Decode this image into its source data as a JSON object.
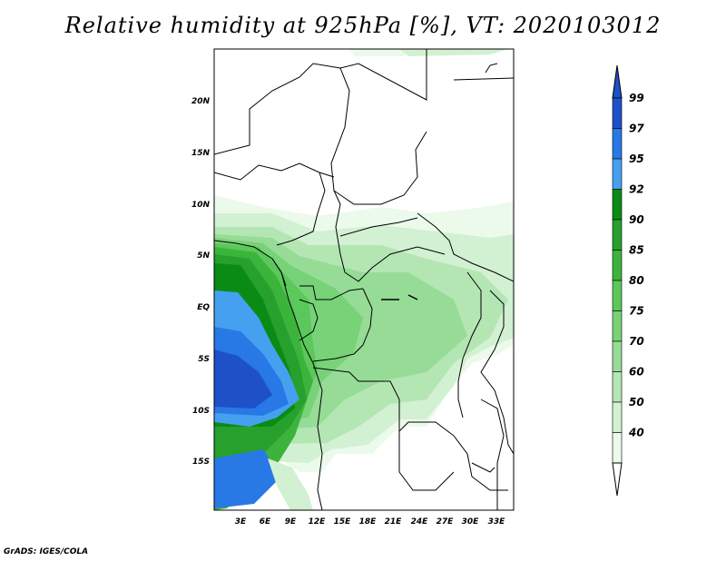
{
  "map": {
    "title": "Relative humidity at 925hPa [%], VT: 2020103012",
    "footer": "GrADS: IGES/COLA",
    "lat_labels": [
      "20N",
      "15N",
      "10N",
      "5N",
      "EQ",
      "5S",
      "10S",
      "15S"
    ],
    "lon_labels": [
      "3E",
      "6E",
      "9E",
      "12E",
      "15E",
      "18E",
      "21E",
      "24E",
      "27E",
      "30E",
      "33E"
    ],
    "colorbar": {
      "labels": [
        "99",
        "97",
        "95",
        "92",
        "90",
        "85",
        "80",
        "75",
        "70",
        "60",
        "50",
        "40"
      ],
      "colors": [
        "#1e50c8",
        "#2878e6",
        "#46a0f0",
        "#0a8c14",
        "#28a02d",
        "#3cb43c",
        "#5ac85a",
        "#78d278",
        "#96dc96",
        "#b4e6b4",
        "#d2f0d2",
        "#ebfaeb"
      ]
    }
  }
}
